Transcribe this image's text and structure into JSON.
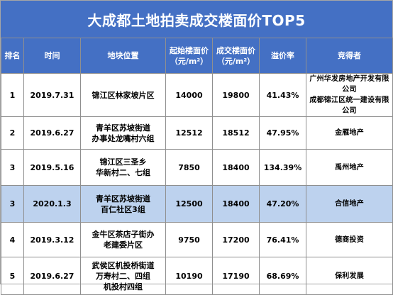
{
  "title": "大成都土地拍卖成交楼面价TOP5",
  "colors": {
    "header_bg": "#4470c4",
    "header_text": "#ffffff",
    "highlight_row": "#bdd2ee",
    "border": "#8f8f8f"
  },
  "headers": {
    "rank": "排名",
    "time": "时间",
    "location": "地块位置",
    "start_price": "起始楼面价\n（元/m²）",
    "deal_price": "成交楼面价\n（元/m²）",
    "premium": "溢价率",
    "bidder": "竞得者"
  },
  "rows": [
    {
      "rank": "1",
      "time": "2019.7.31",
      "location": "锦江区林家坡片区",
      "start_price": "14000",
      "deal_price": "19800",
      "premium": "41.43%",
      "bidder": "广州华发房地产开发有限公司\n成都锦江区统一建设有限公司"
    },
    {
      "rank": "2",
      "time": "2019.6.27",
      "location": "青羊区苏坡街道\n办事处龙嘴村六组",
      "start_price": "12512",
      "deal_price": "18512",
      "premium": "47.95%",
      "bidder": "金雁地产"
    },
    {
      "rank": "3",
      "time": "2019.5.16",
      "location": "锦江区三圣乡\n华新村二、七组",
      "start_price": "7850",
      "deal_price": "18400",
      "premium": "134.39%",
      "bidder": "禹州地产"
    },
    {
      "rank": "3",
      "time": "2020.1.3",
      "location": "青羊区苏坡街道\n百仁社区3组",
      "start_price": "12500",
      "deal_price": "18400",
      "premium": "47.20%",
      "bidder": "合信地产"
    },
    {
      "rank": "4",
      "time": "2019.3.12",
      "location": "金牛区茶店子街办\n老建委片区",
      "start_price": "9750",
      "deal_price": "17200",
      "premium": "76.41%",
      "bidder": "德商投资"
    },
    {
      "rank": "5",
      "time": "2019.6.27",
      "location": "武侯区机投桥街道\n万寿村二、四组\n机投村四组",
      "start_price": "10190",
      "deal_price": "17190",
      "premium": "68.69%",
      "bidder": "保利发展"
    }
  ]
}
